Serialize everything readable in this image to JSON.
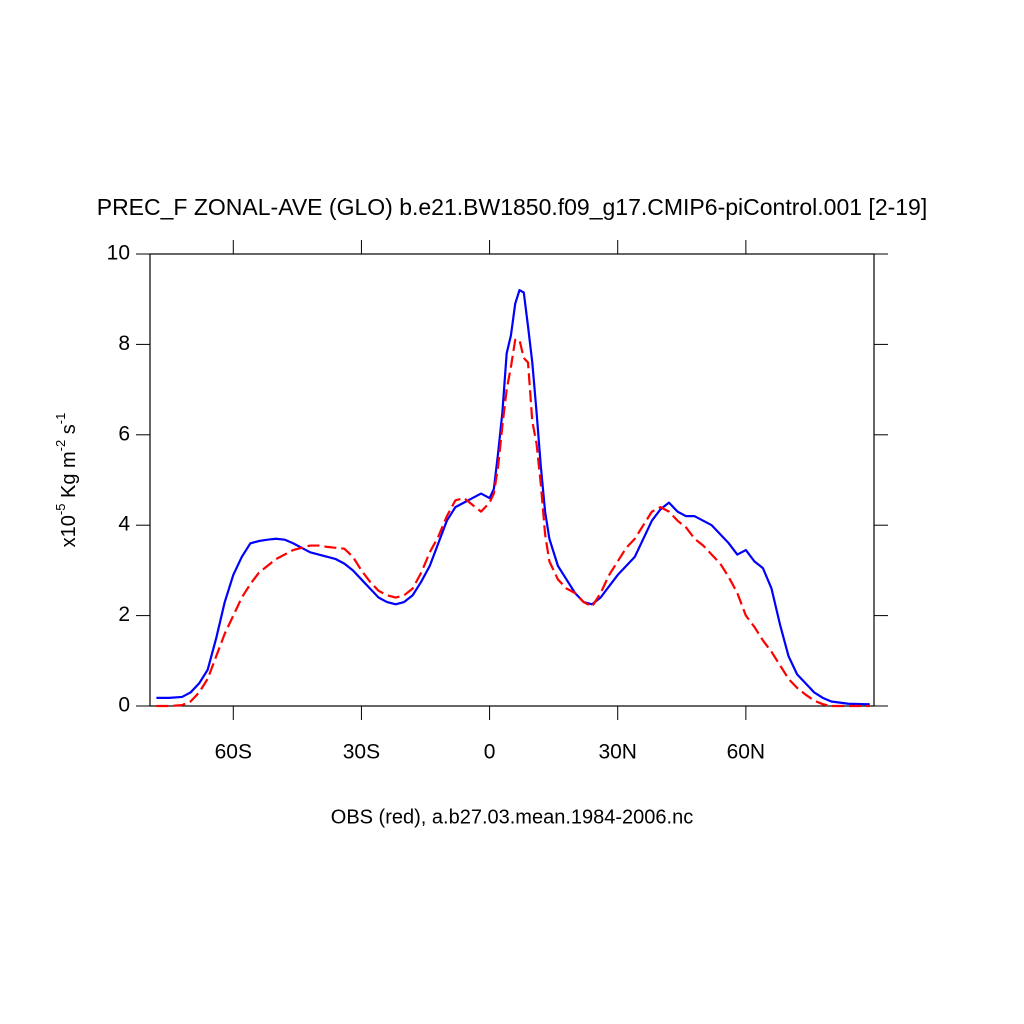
{
  "chart_data": {
    "type": "line",
    "title": "PREC_F ZONAL-AVE (GLO) b.e21.BW1850.f09_g17.CMIP6-piControl.001 [2-19]",
    "subtitle": "OBS (red), a.b27.03.mean.1984-2006.nc",
    "ylabel": [
      "x10",
      "-5",
      " Kg m",
      "-2",
      " s",
      "-1"
    ],
    "x": [
      -78,
      -75,
      -72,
      -70,
      -68,
      -66,
      -64,
      -62,
      -60,
      -58,
      -56,
      -54,
      -52,
      -50,
      -48,
      -46,
      -44,
      -42,
      -40,
      -38,
      -36,
      -34,
      -32,
      -30,
      -28,
      -26,
      -24,
      -22,
      -20,
      -18,
      -16,
      -14,
      -12,
      -10,
      -8,
      -6,
      -4,
      -2,
      0,
      1,
      2,
      3,
      4,
      5,
      6,
      7,
      8,
      9,
      10,
      11,
      12,
      13,
      14,
      16,
      18,
      20,
      22,
      24,
      26,
      28,
      30,
      32,
      34,
      36,
      38,
      40,
      42,
      44,
      46,
      48,
      50,
      52,
      54,
      56,
      58,
      60,
      62,
      64,
      66,
      68,
      70,
      72,
      74,
      76,
      78,
      80,
      84,
      88,
      89
    ],
    "series": [
      {
        "color": "#0000ff",
        "dash": false,
        "values": [
          0.18,
          0.18,
          0.2,
          0.3,
          0.5,
          0.8,
          1.5,
          2.3,
          2.9,
          3.3,
          3.6,
          3.65,
          3.68,
          3.7,
          3.68,
          3.6,
          3.5,
          3.4,
          3.35,
          3.3,
          3.25,
          3.15,
          3.0,
          2.8,
          2.6,
          2.4,
          2.3,
          2.25,
          2.3,
          2.45,
          2.75,
          3.1,
          3.6,
          4.1,
          4.4,
          4.5,
          4.6,
          4.7,
          4.6,
          4.8,
          5.6,
          6.5,
          7.8,
          8.2,
          8.9,
          9.2,
          9.15,
          8.4,
          7.6,
          6.5,
          5.3,
          4.3,
          3.7,
          3.1,
          2.8,
          2.5,
          2.3,
          2.25,
          2.4,
          2.65,
          2.9,
          3.1,
          3.3,
          3.7,
          4.1,
          4.35,
          4.5,
          4.3,
          4.2,
          4.2,
          4.1,
          4.0,
          3.8,
          3.6,
          3.35,
          3.45,
          3.2,
          3.05,
          2.6,
          1.8,
          1.1,
          0.7,
          0.5,
          0.3,
          0.18,
          0.1,
          0.05,
          0.04,
          0.04
        ]
      },
      {
        "color": "#ff0000",
        "dash": true,
        "values": [
          0,
          0,
          0.02,
          0.1,
          0.3,
          0.6,
          1.1,
          1.6,
          2.0,
          2.4,
          2.7,
          2.95,
          3.1,
          3.25,
          3.35,
          3.45,
          3.5,
          3.55,
          3.55,
          3.52,
          3.5,
          3.48,
          3.3,
          3.0,
          2.75,
          2.55,
          2.45,
          2.4,
          2.45,
          2.6,
          2.95,
          3.4,
          3.75,
          4.2,
          4.55,
          4.6,
          4.45,
          4.3,
          4.5,
          4.7,
          5.3,
          6.2,
          7.0,
          7.5,
          8.1,
          8.1,
          7.7,
          7.6,
          6.3,
          5.8,
          4.9,
          3.8,
          3.2,
          2.8,
          2.6,
          2.5,
          2.3,
          2.2,
          2.5,
          2.9,
          3.2,
          3.5,
          3.7,
          4.0,
          4.3,
          4.4,
          4.3,
          4.1,
          3.95,
          3.7,
          3.55,
          3.35,
          3.15,
          2.85,
          2.5,
          2.0,
          1.75,
          1.45,
          1.2,
          0.9,
          0.6,
          0.4,
          0.25,
          0.12,
          0.04,
          0,
          0,
          0,
          0
        ]
      }
    ],
    "xlim": [
      -79.5,
      90
    ],
    "xticks": [
      {
        "value": -60,
        "label": "60S"
      },
      {
        "value": -30,
        "label": "30S"
      },
      0,
      {
        "value": 30,
        "label": "30N"
      },
      {
        "value": 60,
        "label": "60N"
      }
    ],
    "ylim": [
      0,
      10
    ],
    "yticks": [
      0,
      2,
      4,
      6,
      8,
      10
    ]
  }
}
